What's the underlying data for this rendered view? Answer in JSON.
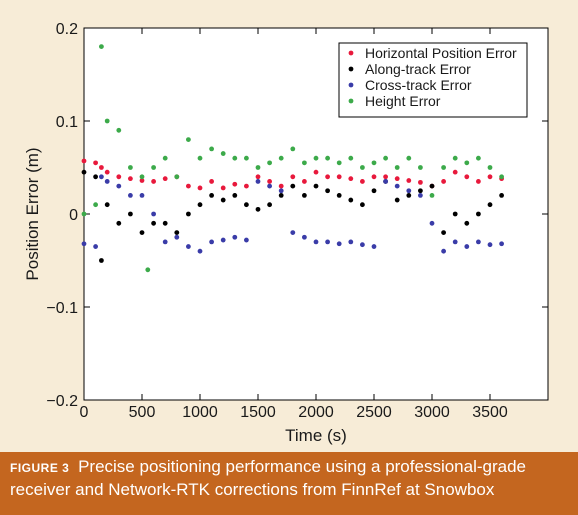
{
  "caption": {
    "label": "FIGURE 3",
    "text": "Precise positioning performance using a professional-grade receiver and Network-RTK corrections from FinnRef at Snowbox"
  },
  "chart_data": {
    "type": "scatter",
    "title": "",
    "xlabel": "Time (s)",
    "ylabel": "Position Error (m)",
    "xlim": [
      0,
      4000
    ],
    "ylim": [
      -0.2,
      0.2
    ],
    "xticks": [
      0,
      500,
      1000,
      1500,
      2000,
      2500,
      3000,
      3500
    ],
    "yticks": [
      -0.2,
      -0.1,
      0,
      0.1,
      0.2
    ],
    "ytick_labels": [
      "−0.2",
      "−0.1",
      "0",
      "0.1",
      "0.2"
    ],
    "grid": false,
    "legend_position": "top-right",
    "series": [
      {
        "name": "Horizontal Position Error",
        "color": "#e8193c",
        "x": [
          0,
          100,
          150,
          200,
          300,
          400,
          500,
          600,
          700,
          800,
          900,
          1000,
          1100,
          1200,
          1300,
          1400,
          1500,
          1600,
          1700,
          1800,
          1900,
          2000,
          2100,
          2200,
          2300,
          2400,
          2500,
          2600,
          2700,
          2800,
          2900,
          3000,
          3100,
          3200,
          3300,
          3400,
          3500,
          3600
        ],
        "y": [
          0.057,
          0.055,
          0.05,
          0.045,
          0.04,
          0.038,
          0.036,
          0.035,
          0.038,
          0.04,
          0.03,
          0.028,
          0.035,
          0.028,
          0.032,
          0.03,
          0.04,
          0.035,
          0.03,
          0.04,
          0.035,
          0.045,
          0.04,
          0.04,
          0.038,
          0.035,
          0.04,
          0.04,
          0.038,
          0.036,
          0.034,
          0.03,
          0.035,
          0.045,
          0.04,
          0.035,
          0.04,
          0.038
        ]
      },
      {
        "name": "Along-track Error",
        "color": "#000000",
        "x": [
          0,
          100,
          150,
          200,
          300,
          400,
          500,
          600,
          700,
          800,
          900,
          1000,
          1100,
          1200,
          1300,
          1400,
          1500,
          1600,
          1700,
          1800,
          1900,
          2000,
          2100,
          2200,
          2300,
          2400,
          2500,
          2600,
          2700,
          2800,
          2900,
          3000,
          3100,
          3200,
          3300,
          3400,
          3500,
          3600
        ],
        "y": [
          0.045,
          0.04,
          -0.05,
          0.01,
          -0.01,
          0.0,
          -0.02,
          -0.01,
          -0.01,
          -0.02,
          0.0,
          0.01,
          0.02,
          0.015,
          0.02,
          0.01,
          0.005,
          0.01,
          0.02,
          0.03,
          0.02,
          0.03,
          0.025,
          0.02,
          0.015,
          0.01,
          0.025,
          0.035,
          0.015,
          0.02,
          0.025,
          0.03,
          -0.02,
          0.0,
          -0.01,
          0.0,
          0.01,
          0.02
        ]
      },
      {
        "name": "Cross-track Error",
        "color": "#3a3ca8",
        "x": [
          0,
          100,
          150,
          200,
          300,
          400,
          500,
          600,
          700,
          800,
          900,
          1000,
          1100,
          1200,
          1300,
          1400,
          1500,
          1600,
          1700,
          1800,
          1900,
          2000,
          2100,
          2200,
          2300,
          2400,
          2500,
          2600,
          2700,
          2800,
          2900,
          3000,
          3100,
          3200,
          3300,
          3400,
          3500,
          3600
        ],
        "y": [
          -0.032,
          -0.035,
          0.04,
          0.035,
          0.03,
          0.02,
          0.02,
          0.0,
          -0.03,
          -0.025,
          -0.035,
          -0.04,
          -0.03,
          -0.028,
          -0.025,
          -0.028,
          0.035,
          0.03,
          0.025,
          -0.02,
          -0.025,
          -0.03,
          -0.03,
          -0.032,
          -0.03,
          -0.033,
          -0.035,
          0.035,
          0.03,
          0.025,
          0.02,
          -0.01,
          -0.04,
          -0.03,
          -0.035,
          -0.03,
          -0.033,
          -0.032
        ]
      },
      {
        "name": "Height Error",
        "color": "#3caa4a",
        "x": [
          0,
          100,
          150,
          200,
          300,
          400,
          500,
          550,
          600,
          700,
          800,
          900,
          1000,
          1100,
          1200,
          1300,
          1400,
          1500,
          1600,
          1700,
          1800,
          1900,
          2000,
          2100,
          2200,
          2300,
          2400,
          2500,
          2600,
          2700,
          2800,
          2900,
          3000,
          3100,
          3200,
          3300,
          3400,
          3500,
          3600
        ],
        "y": [
          0.0,
          0.01,
          0.18,
          0.1,
          0.09,
          0.05,
          0.04,
          -0.06,
          0.05,
          0.06,
          0.04,
          0.08,
          0.06,
          0.07,
          0.065,
          0.06,
          0.06,
          0.05,
          0.055,
          0.06,
          0.07,
          0.055,
          0.06,
          0.06,
          0.055,
          0.06,
          0.05,
          0.055,
          0.06,
          0.05,
          0.06,
          0.05,
          0.02,
          0.05,
          0.06,
          0.055,
          0.06,
          0.05,
          0.04
        ]
      }
    ]
  }
}
